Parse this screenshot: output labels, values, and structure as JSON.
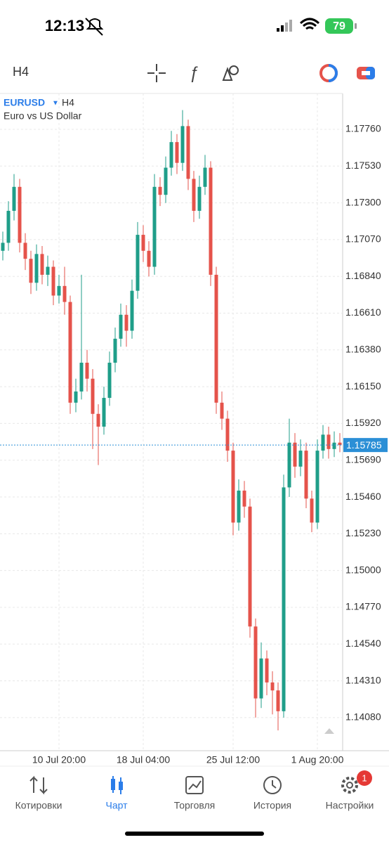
{
  "status_bar": {
    "time": "12:13",
    "battery": "79"
  },
  "toolbar": {
    "timeframe": "H4"
  },
  "chart_data": {
    "type": "candlestick",
    "symbol": "EURUSD",
    "timeframe": "H4",
    "description": "Euro vs US Dollar",
    "categories": [
      null,
      null,
      null,
      null,
      null,
      null,
      null,
      null,
      null,
      null,
      "10 Jul 20:00",
      null,
      null,
      null,
      null,
      null,
      null,
      null,
      null,
      null,
      null,
      null,
      null,
      null,
      null,
      "18 Jul 04:00",
      null,
      null,
      null,
      null,
      null,
      null,
      null,
      null,
      null,
      null,
      null,
      null,
      null,
      null,
      null,
      "25 Jul 12:00",
      null,
      null,
      null,
      null,
      null,
      null,
      null,
      null,
      null,
      null,
      null,
      null,
      null,
      null,
      "1 Aug 20:00",
      null,
      null,
      null,
      null
    ],
    "open": [
      1.17,
      1.1705,
      1.1725,
      1.174,
      1.1705,
      1.1695,
      1.168,
      1.1698,
      1.1685,
      1.169,
      1.1672,
      1.1678,
      1.1668,
      1.1605,
      1.1612,
      1.163,
      1.162,
      1.1598,
      1.159,
      1.1608,
      1.163,
      1.1645,
      1.166,
      1.165,
      1.1675,
      1.171,
      1.17,
      1.169,
      1.174,
      1.1735,
      1.1752,
      1.1768,
      1.1755,
      1.1778,
      1.1745,
      1.1725,
      1.174,
      1.1752,
      1.1685,
      1.1605,
      1.1595,
      1.1575,
      1.153,
      1.155,
      1.154,
      1.1465,
      1.142,
      1.1445,
      1.143,
      1.1425,
      1.1412,
      1.1552,
      1.158,
      1.1565,
      1.1575,
      1.1545,
      1.153,
      1.1575,
      1.1585,
      1.1576,
      1.158
    ],
    "high": [
      1.1712,
      1.1731,
      1.1748,
      1.1745,
      1.1711,
      1.17,
      1.1704,
      1.1703,
      1.1697,
      1.1694,
      1.1685,
      1.169,
      1.1672,
      1.162,
      1.1685,
      1.1638,
      1.1626,
      1.1604,
      1.1615,
      1.1637,
      1.1652,
      1.1667,
      1.1666,
      1.1682,
      1.1718,
      1.1716,
      1.1706,
      1.1748,
      1.1746,
      1.1759,
      1.1775,
      1.1773,
      1.1788,
      1.1782,
      1.175,
      1.1747,
      1.176,
      1.1756,
      1.169,
      1.1612,
      1.16,
      1.158,
      1.1557,
      1.1556,
      1.1545,
      1.147,
      1.1455,
      1.145,
      1.1437,
      1.143,
      1.156,
      1.1595,
      1.1586,
      1.1582,
      1.158,
      1.155,
      1.1582,
      1.1591,
      1.159,
      1.1587,
      1.1586
    ],
    "low": [
      1.1694,
      1.17,
      1.1719,
      1.1699,
      1.1688,
      1.1673,
      1.1675,
      1.1679,
      1.1678,
      1.1666,
      1.1667,
      1.166,
      1.1598,
      1.1599,
      1.1607,
      1.1612,
      1.1576,
      1.1566,
      1.1585,
      1.1603,
      1.1624,
      1.164,
      1.164,
      1.1645,
      1.167,
      1.1693,
      1.1684,
      1.1685,
      1.1728,
      1.173,
      1.1747,
      1.1748,
      1.175,
      1.1738,
      1.1718,
      1.172,
      1.1735,
      1.1678,
      1.1598,
      1.1588,
      1.1568,
      1.1522,
      1.1525,
      1.1533,
      1.1458,
      1.1408,
      1.1414,
      1.1422,
      1.141,
      1.14,
      1.1408,
      1.1546,
      1.1558,
      1.1559,
      1.1539,
      1.1524,
      1.1526,
      1.157,
      1.157,
      1.1571,
      1.1574
    ],
    "close": [
      1.1705,
      1.1725,
      1.174,
      1.1705,
      1.1695,
      1.168,
      1.1698,
      1.1685,
      1.169,
      1.1672,
      1.1678,
      1.1668,
      1.1605,
      1.1612,
      1.163,
      1.162,
      1.1598,
      1.159,
      1.1608,
      1.163,
      1.1645,
      1.166,
      1.165,
      1.1675,
      1.171,
      1.17,
      1.169,
      1.174,
      1.1735,
      1.1752,
      1.1768,
      1.1755,
      1.1778,
      1.1745,
      1.1725,
      1.174,
      1.1752,
      1.1685,
      1.1605,
      1.1595,
      1.1575,
      1.153,
      1.155,
      1.154,
      1.1465,
      1.142,
      1.1445,
      1.143,
      1.1425,
      1.1412,
      1.1552,
      1.158,
      1.1565,
      1.1575,
      1.1545,
      1.153,
      1.1575,
      1.1585,
      1.1576,
      1.158,
      1.15785
    ],
    "up_color": "#1f9e89",
    "down_color": "#e5534b",
    "last_price": 1.15785,
    "last_price_color": "#2b8fd6",
    "ylim": [
      1.13873,
      1.17984
    ],
    "yticks": [
      {
        "value": 1.1776,
        "label": "1.17760"
      },
      {
        "value": 1.1753,
        "label": "1.17530"
      },
      {
        "value": 1.173,
        "label": "1.17300"
      },
      {
        "value": 1.1707,
        "label": "1.17070"
      },
      {
        "value": 1.1684,
        "label": "1.16840"
      },
      {
        "value": 1.1661,
        "label": "1.16610"
      },
      {
        "value": 1.1638,
        "label": "1.16380"
      },
      {
        "value": 1.1615,
        "label": "1.16150"
      },
      {
        "value": 1.1592,
        "label": "1.15920"
      },
      {
        "value": 1.1569,
        "label": "1.15690"
      },
      {
        "value": 1.1546,
        "label": "1.15460"
      },
      {
        "value": 1.1523,
        "label": "1.15230"
      },
      {
        "value": 1.15,
        "label": "1.15000"
      },
      {
        "value": 1.1477,
        "label": "1.14770"
      },
      {
        "value": 1.1454,
        "label": "1.14540"
      },
      {
        "value": 1.1431,
        "label": "1.14310"
      },
      {
        "value": 1.1408,
        "label": "1.14080"
      }
    ],
    "grid": true
  },
  "nav": {
    "items": [
      {
        "label": "Котировки"
      },
      {
        "label": "Чарт"
      },
      {
        "label": "Торговля"
      },
      {
        "label": "История"
      },
      {
        "label": "Настройки"
      }
    ],
    "badge": "1"
  }
}
